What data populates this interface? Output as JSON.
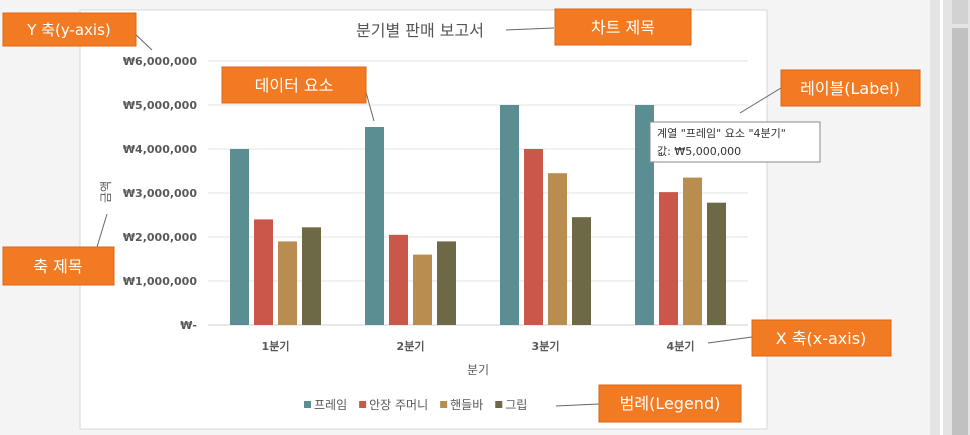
{
  "colors": {
    "frame": "#5b8e92",
    "saddle": "#c9584b",
    "handlebar": "#b98d50",
    "grip": "#6d6846",
    "callout": "#f27a22",
    "callout_text": "#ffffff",
    "tooltip_border": "#8a8a8a"
  },
  "chart_data": {
    "type": "bar",
    "title": "분기별 판매 보고서",
    "xlabel": "분기",
    "ylabel": "금액",
    "categories": [
      "1분기",
      "2분기",
      "3분기",
      "4분기"
    ],
    "ylim": [
      0,
      6000000
    ],
    "y_ticks": [
      {
        "value": 0,
        "label": "₩-"
      },
      {
        "value": 1000000,
        "label": "₩1,000,000"
      },
      {
        "value": 2000000,
        "label": "₩2,000,000"
      },
      {
        "value": 3000000,
        "label": "₩3,000,000"
      },
      {
        "value": 4000000,
        "label": "₩4,000,000"
      },
      {
        "value": 5000000,
        "label": "₩5,000,000"
      },
      {
        "value": 6000000,
        "label": "₩6,000,000"
      }
    ],
    "grid": true,
    "legend_position": "bottom",
    "series": [
      {
        "name": "프레임",
        "color_key": "frame",
        "values": [
          4000000,
          4500000,
          5000000,
          5000000
        ]
      },
      {
        "name": "안장 주머니",
        "color_key": "saddle",
        "values": [
          2400000,
          2050000,
          4000000,
          3020000
        ]
      },
      {
        "name": "핸들바",
        "color_key": "handlebar",
        "values": [
          1900000,
          1600000,
          3450000,
          3350000
        ]
      },
      {
        "name": "그립",
        "color_key": "grip",
        "values": [
          2220000,
          1900000,
          2450000,
          2780000
        ]
      }
    ]
  },
  "tooltip": {
    "line1": "계열 \"프레임\" 요소 \"4분기\"",
    "line2": "값:  ₩5,000,000"
  },
  "callouts": {
    "y_axis": "Y 축(y-axis)",
    "chart_title": "차트 제목",
    "data_element": "데이터 요소",
    "label": "레이블(Label)",
    "axis_title": "축 제목",
    "x_axis": "X 축(x-axis)",
    "legend": "범례(Legend)"
  }
}
